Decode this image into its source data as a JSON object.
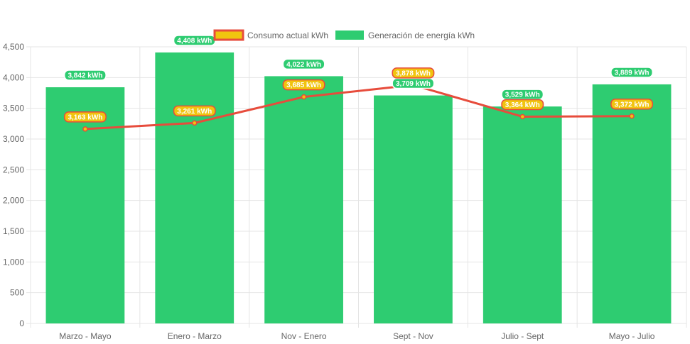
{
  "colors": {
    "bar": "#2ecc71",
    "line": "#e74c3c",
    "point_fill": "#f1c40f",
    "grid": "#e5e5e5",
    "axis_text": "#666666"
  },
  "legend": {
    "consumo_label": "Consumo actual kWh",
    "generacion_label": "Generación de energía kWh"
  },
  "chart_data": {
    "type": "bar",
    "categories": [
      "Marzo - Mayo",
      "Enero - Marzo",
      "Nov - Enero",
      "Sept - Nov",
      "Julio - Sept",
      "Mayo - Julio"
    ],
    "series": [
      {
        "name": "Generación de energía kWh",
        "type": "bar",
        "values": [
          3842,
          4408,
          4022,
          3709,
          3529,
          3889
        ],
        "labels": [
          "3,842 kWh",
          "4,408 kWh",
          "4,022 kWh",
          "3,709 kWh",
          "3,529 kWh",
          "3,889 kWh"
        ]
      },
      {
        "name": "Consumo actual kWh",
        "type": "line",
        "values": [
          3163,
          3261,
          3685,
          3878,
          3364,
          3372
        ],
        "labels": [
          "3,163 kWh",
          "3,261 kWh",
          "3,685 kWh",
          "3,878 kWh",
          "3,364 kWh",
          "3,372 kWh"
        ]
      }
    ],
    "ylim": [
      0,
      4500
    ],
    "yticks": [
      0,
      500,
      1000,
      1500,
      2000,
      2500,
      3000,
      3500,
      4000,
      4500
    ],
    "ytick_labels": [
      "0",
      "500",
      "1,000",
      "1,500",
      "2,000",
      "2,500",
      "3,000",
      "3,500",
      "4,000",
      "4,500"
    ],
    "grid": true,
    "legend_position": "top"
  }
}
